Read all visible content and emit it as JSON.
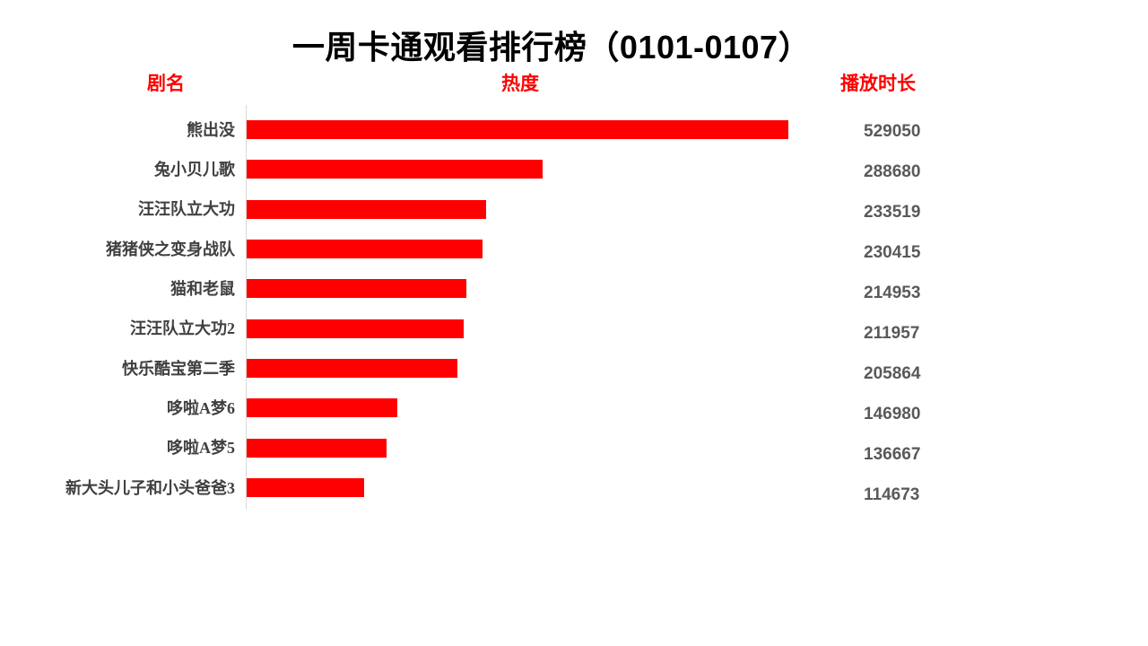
{
  "page": {
    "background": "#ffffff"
  },
  "colors": {
    "accent_red": "#ff0000",
    "title_text": "#000000",
    "label_text": "#404040",
    "value_text": "#595959",
    "axis_line": "#d9d9d9"
  },
  "columns": {
    "name_label": "剧名",
    "heat_label": "热度",
    "duration_label": "播放时长"
  },
  "chart_data": {
    "type": "bar",
    "orientation": "horizontal",
    "title": "一周卡通观看排行榜（0101-0107）",
    "xlabel": "热度",
    "ylabel": "剧名",
    "value_label": "播放时长",
    "legend": "none",
    "grid": "off",
    "xlim": [
      0,
      529050
    ],
    "bar_color": "#ff0000",
    "categories": [
      "熊出没",
      "兔小贝儿歌",
      "汪汪队立大功",
      "猪猪侠之变身战队",
      "猫和老鼠",
      "汪汪队立大功2",
      "快乐酷宝第二季",
      "哆啦A梦6",
      "哆啦A梦5",
      "新大头儿子和小头爸爸3"
    ],
    "values": [
      529050,
      288680,
      233519,
      230415,
      214953,
      211957,
      205864,
      146980,
      136667,
      114673
    ]
  }
}
